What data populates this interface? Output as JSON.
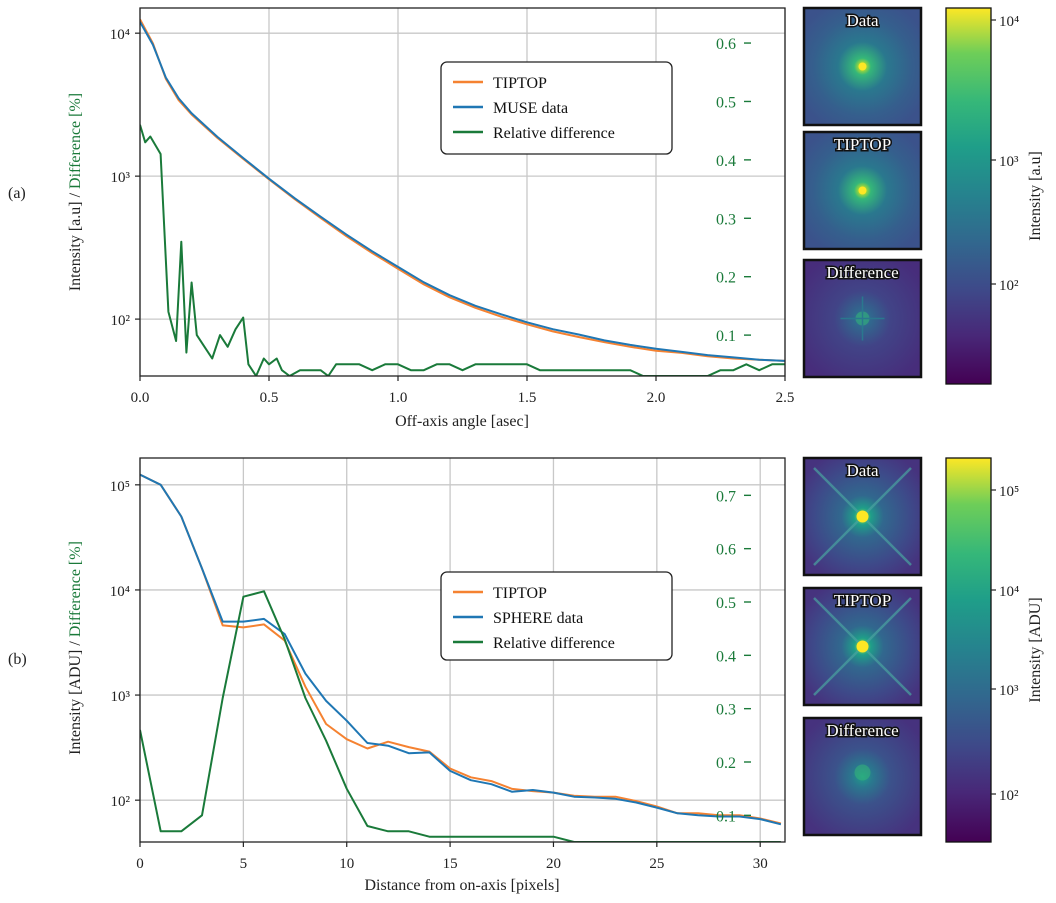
{
  "panels": [
    {
      "panel_label": "(a)",
      "xlabel": "Off-axis angle [asec]",
      "ylabel_main": "Intensity [a.u] / ",
      "ylabel_diff": "Difference [%]",
      "cbar_label": "Intensity [a.u]",
      "thumb_titles": [
        "Data",
        "TIPTOP",
        "Difference"
      ],
      "legend": [
        "TIPTOP",
        "MUSE data",
        "Relative difference"
      ]
    },
    {
      "panel_label": "(b)",
      "xlabel": "Distance from on-axis [pixels]",
      "ylabel_main": "Intensity [ADU] / ",
      "ylabel_diff": "Difference [%]",
      "cbar_label": "Intensity [ADU]",
      "thumb_titles": [
        "Data",
        "TIPTOP",
        "Difference"
      ],
      "legend": [
        "TIPTOP",
        "SPHERE data",
        "Relative difference"
      ]
    }
  ],
  "chart_data": [
    {
      "type": "line",
      "x_axis": {
        "range": [
          0.0,
          2.5
        ],
        "ticks": [
          0.0,
          0.5,
          1.0,
          1.5,
          2.0,
          2.5
        ],
        "tick_labels": [
          "0.0",
          "0.5",
          "1.0",
          "1.5",
          "2.0",
          "2.5"
        ]
      },
      "y_left": {
        "scale": "log",
        "range": [
          40,
          15000
        ],
        "ticks": [
          100,
          1000,
          10000
        ],
        "tick_labels": [
          "10²",
          "10³",
          "10⁴"
        ]
      },
      "y_right": {
        "range": [
          0.03,
          0.66
        ],
        "ticks": [
          0.1,
          0.2,
          0.3,
          0.4,
          0.5,
          0.6
        ],
        "tick_labels": [
          "0.1",
          "0.2",
          "0.3",
          "0.4",
          "0.5",
          "0.6"
        ],
        "color": "#1a7a3a"
      },
      "grid": true,
      "legend_position": "upper-center",
      "colorbar": {
        "scale": "log",
        "ticks": [
          "10²",
          "10³",
          "10⁴"
        ]
      },
      "series": [
        {
          "name": "TIPTOP",
          "color": "#f58231",
          "axis": "left",
          "x": [
            0,
            0.05,
            0.1,
            0.15,
            0.2,
            0.3,
            0.4,
            0.5,
            0.6,
            0.7,
            0.8,
            0.9,
            1.0,
            1.1,
            1.2,
            1.3,
            1.4,
            1.5,
            1.6,
            1.7,
            1.8,
            1.9,
            2.0,
            2.1,
            2.2,
            2.3,
            2.4,
            2.5
          ],
          "y": [
            12500,
            8500,
            4800,
            3400,
            2700,
            1850,
            1320,
            950,
            690,
            510,
            380,
            290,
            225,
            175,
            142,
            120,
            104,
            92,
            82,
            75,
            69,
            64,
            60,
            58,
            55,
            53,
            52,
            51
          ]
        },
        {
          "name": "MUSE data",
          "color": "#1f77b4",
          "axis": "left",
          "x": [
            0,
            0.05,
            0.1,
            0.15,
            0.2,
            0.3,
            0.4,
            0.5,
            0.6,
            0.7,
            0.8,
            0.9,
            1.0,
            1.1,
            1.2,
            1.3,
            1.4,
            1.5,
            1.6,
            1.7,
            1.8,
            1.9,
            2.0,
            2.1,
            2.2,
            2.3,
            2.4,
            2.5
          ],
          "y": [
            12000,
            8300,
            4900,
            3500,
            2750,
            1880,
            1340,
            960,
            700,
            520,
            390,
            298,
            232,
            181,
            147,
            124,
            108,
            95,
            85,
            78,
            71,
            66,
            62,
            59,
            56,
            54,
            52,
            51
          ]
        },
        {
          "name": "Relative difference",
          "color": "#1a7a3a",
          "axis": "right",
          "x": [
            0,
            0.02,
            0.04,
            0.08,
            0.11,
            0.14,
            0.16,
            0.18,
            0.2,
            0.22,
            0.25,
            0.28,
            0.31,
            0.34,
            0.37,
            0.4,
            0.42,
            0.45,
            0.48,
            0.5,
            0.53,
            0.55,
            0.58,
            0.62,
            0.66,
            0.7,
            0.73,
            0.76,
            0.8,
            0.85,
            0.9,
            0.95,
            1.0,
            1.05,
            1.1,
            1.15,
            1.2,
            1.25,
            1.3,
            1.35,
            1.4,
            1.45,
            1.5,
            1.55,
            1.6,
            1.65,
            1.7,
            1.75,
            1.8,
            1.85,
            1.9,
            1.95,
            2.0,
            2.05,
            2.1,
            2.15,
            2.2,
            2.25,
            2.3,
            2.35,
            2.4,
            2.45,
            2.5
          ],
          "y": [
            0.46,
            0.43,
            0.44,
            0.41,
            0.14,
            0.09,
            0.26,
            0.07,
            0.19,
            0.1,
            0.08,
            0.06,
            0.1,
            0.08,
            0.11,
            0.13,
            0.05,
            0.03,
            0.06,
            0.05,
            0.06,
            0.04,
            0.03,
            0.04,
            0.04,
            0.04,
            0.03,
            0.05,
            0.05,
            0.05,
            0.04,
            0.05,
            0.05,
            0.04,
            0.04,
            0.05,
            0.05,
            0.04,
            0.05,
            0.05,
            0.05,
            0.05,
            0.05,
            0.04,
            0.04,
            0.04,
            0.04,
            0.04,
            0.04,
            0.04,
            0.04,
            0.03,
            0.03,
            0.03,
            0.03,
            0.03,
            0.03,
            0.04,
            0.04,
            0.05,
            0.04,
            0.05,
            0.05
          ]
        }
      ]
    },
    {
      "type": "line",
      "x_axis": {
        "range": [
          0,
          31.2
        ],
        "ticks": [
          0,
          5,
          10,
          15,
          20,
          25,
          30
        ],
        "tick_labels": [
          "0",
          "5",
          "10",
          "15",
          "20",
          "25",
          "30"
        ]
      },
      "y_left": {
        "scale": "log",
        "range": [
          40,
          180000
        ],
        "ticks": [
          100,
          1000,
          10000,
          100000
        ],
        "tick_labels": [
          "10²",
          "10³",
          "10⁴",
          "10⁵"
        ]
      },
      "y_right": {
        "range": [
          0.05,
          0.77
        ],
        "ticks": [
          0.1,
          0.2,
          0.3,
          0.4,
          0.5,
          0.6,
          0.7
        ],
        "tick_labels": [
          "0.1",
          "0.2",
          "0.3",
          "0.4",
          "0.5",
          "0.6",
          "0.7"
        ],
        "color": "#1a7a3a"
      },
      "grid": true,
      "legend_position": "center",
      "colorbar": {
        "scale": "log",
        "ticks": [
          "10²",
          "10³",
          "10⁴",
          "10⁵"
        ]
      },
      "series": [
        {
          "name": "TIPTOP",
          "color": "#f58231",
          "axis": "left",
          "x": [
            0,
            1,
            2,
            3,
            4,
            5,
            6,
            7,
            8,
            9,
            10,
            11,
            12,
            13,
            14,
            15,
            16,
            17,
            18,
            19,
            20,
            21,
            22,
            23,
            24,
            25,
            26,
            27,
            28,
            29,
            30,
            31
          ],
          "y": [
            125000,
            100000,
            50000,
            16000,
            4600,
            4400,
            4700,
            3300,
            1200,
            530,
            380,
            310,
            360,
            320,
            290,
            200,
            165,
            152,
            128,
            122,
            118,
            110,
            108,
            108,
            98,
            87,
            75,
            75,
            72,
            72,
            67,
            60
          ]
        },
        {
          "name": "SPHERE data",
          "color": "#1f77b4",
          "axis": "left",
          "x": [
            0,
            1,
            2,
            3,
            4,
            5,
            6,
            7,
            8,
            9,
            10,
            11,
            12,
            13,
            14,
            15,
            16,
            17,
            18,
            19,
            20,
            21,
            22,
            23,
            24,
            25,
            26,
            27,
            28,
            29,
            30,
            31
          ],
          "y": [
            125000,
            100000,
            50000,
            16000,
            5000,
            5000,
            5300,
            3800,
            1600,
            880,
            570,
            350,
            330,
            280,
            285,
            190,
            155,
            142,
            120,
            125,
            118,
            108,
            106,
            103,
            95,
            85,
            75,
            72,
            70,
            70,
            66,
            59
          ]
        },
        {
          "name": "Relative difference",
          "color": "#1a7a3a",
          "axis": "right",
          "x": [
            0,
            1,
            2,
            3,
            4,
            5,
            6,
            7,
            8,
            9,
            10,
            11,
            12,
            13,
            14,
            15,
            16,
            17,
            18,
            19,
            20,
            21,
            22,
            23,
            24,
            25,
            26,
            27,
            28,
            29,
            30,
            31
          ],
          "y": [
            0.26,
            0.07,
            0.07,
            0.1,
            0.32,
            0.51,
            0.52,
            0.43,
            0.32,
            0.24,
            0.15,
            0.08,
            0.07,
            0.07,
            0.06,
            0.06,
            0.06,
            0.06,
            0.06,
            0.06,
            0.06,
            0.05,
            0.05,
            0.05,
            0.05,
            0.05,
            0.05,
            0.05,
            0.05,
            0.05,
            0.05,
            0.05
          ]
        }
      ]
    }
  ]
}
